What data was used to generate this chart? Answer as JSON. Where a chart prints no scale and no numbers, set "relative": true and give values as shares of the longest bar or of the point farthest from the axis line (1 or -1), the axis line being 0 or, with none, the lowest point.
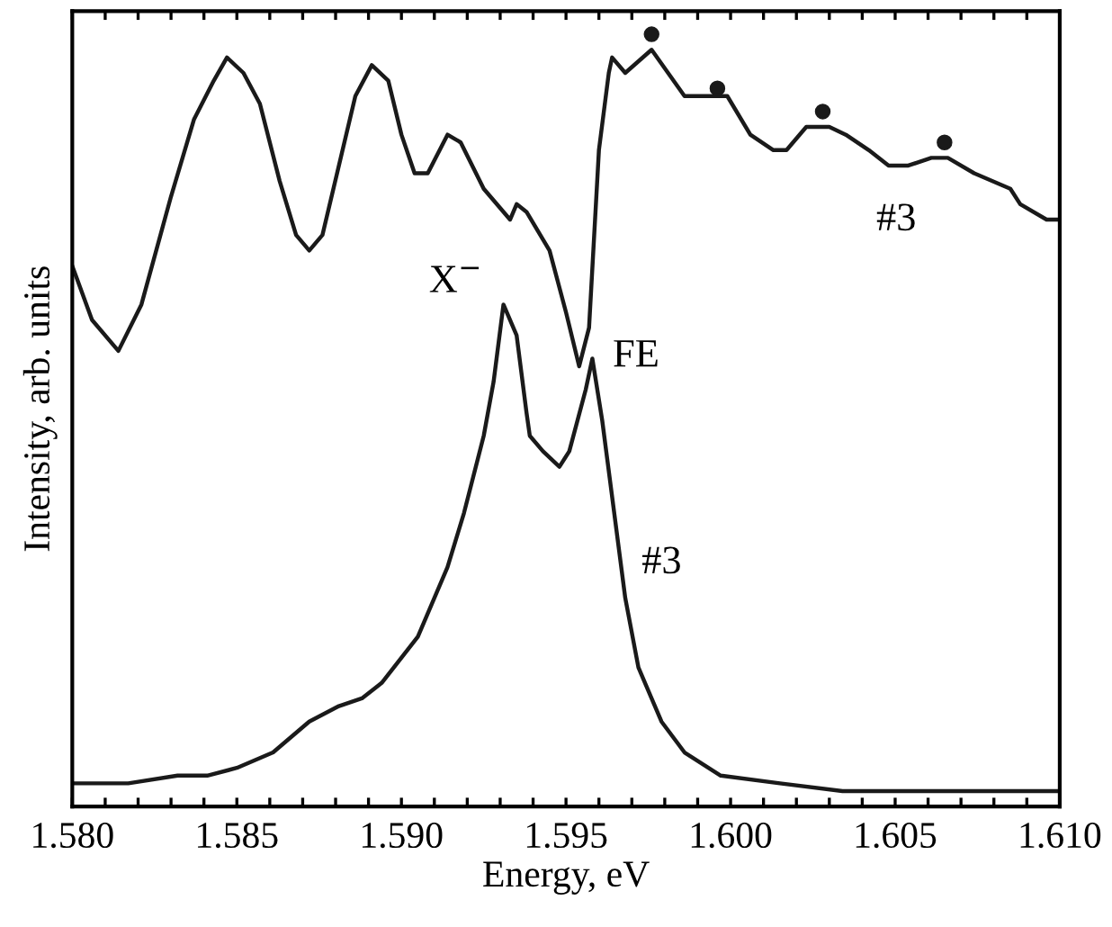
{
  "chart_data": {
    "type": "line",
    "relative": true,
    "xlabel": "Energy, eV",
    "ylabel": "Intensity, arb. units",
    "xlim": [
      1.58,
      1.61
    ],
    "xticks": [
      {
        "value": 1.58,
        "label": "1.580"
      },
      {
        "value": 1.581,
        "label": null
      },
      {
        "value": 1.582,
        "label": null
      },
      {
        "value": 1.583,
        "label": null
      },
      {
        "value": 1.584,
        "label": null
      },
      {
        "value": 1.585,
        "label": "1.585"
      },
      {
        "value": 1.586,
        "label": null
      },
      {
        "value": 1.587,
        "label": null
      },
      {
        "value": 1.588,
        "label": null
      },
      {
        "value": 1.589,
        "label": null
      },
      {
        "value": 1.59,
        "label": "1.590"
      },
      {
        "value": 1.591,
        "label": null
      },
      {
        "value": 1.592,
        "label": null
      },
      {
        "value": 1.593,
        "label": null
      },
      {
        "value": 1.594,
        "label": null
      },
      {
        "value": 1.595,
        "label": "1.595"
      },
      {
        "value": 1.596,
        "label": null
      },
      {
        "value": 1.597,
        "label": null
      },
      {
        "value": 1.598,
        "label": null
      },
      {
        "value": 1.599,
        "label": null
      },
      {
        "value": 1.6,
        "label": "1.600"
      },
      {
        "value": 1.601,
        "label": null
      },
      {
        "value": 1.602,
        "label": null
      },
      {
        "value": 1.603,
        "label": null
      },
      {
        "value": 1.604,
        "label": null
      },
      {
        "value": 1.605,
        "label": "1.605"
      },
      {
        "value": 1.606,
        "label": null
      },
      {
        "value": 1.607,
        "label": null
      },
      {
        "value": 1.608,
        "label": null
      },
      {
        "value": 1.609,
        "label": null
      },
      {
        "value": 1.61,
        "label": "1.610"
      }
    ],
    "series": [
      {
        "color": "#1a1a1a",
        "x": [
          1.58,
          1.5806,
          1.5814,
          1.5821,
          1.583,
          1.5837,
          1.5843,
          1.5847,
          1.5852,
          1.5857,
          1.5863,
          1.5868,
          1.5872,
          1.5876,
          1.5881,
          1.5886,
          1.5891,
          1.5896,
          1.59,
          1.5904,
          1.5908,
          1.5914,
          1.5918,
          1.5925,
          1.5933,
          1.5935,
          1.5938,
          1.5945,
          1.595,
          1.5954,
          1.5957,
          1.596,
          1.5963,
          1.5964,
          1.5968,
          1.5976,
          1.5981,
          1.5986,
          1.5991,
          1.5995,
          1.5999,
          1.6006,
          1.6013,
          1.6017,
          1.6023,
          1.603,
          1.6035,
          1.6042,
          1.6048,
          1.6054,
          1.6061,
          1.6066,
          1.6074,
          1.6085,
          1.6088,
          1.6096,
          1.61
        ],
        "values": [
          0.7,
          0.63,
          0.59,
          0.65,
          0.79,
          0.89,
          0.94,
          0.97,
          0.95,
          0.91,
          0.81,
          0.74,
          0.72,
          0.74,
          0.83,
          0.92,
          0.96,
          0.94,
          0.87,
          0.82,
          0.82,
          0.87,
          0.86,
          0.8,
          0.76,
          0.78,
          0.77,
          0.72,
          0.64,
          0.57,
          0.62,
          0.85,
          0.95,
          0.97,
          0.95,
          0.98,
          0.95,
          0.92,
          0.92,
          0.92,
          0.92,
          0.87,
          0.85,
          0.85,
          0.88,
          0.88,
          0.87,
          0.85,
          0.83,
          0.83,
          0.84,
          0.84,
          0.82,
          0.8,
          0.78,
          0.76,
          0.76
        ]
      },
      {
        "color": "#1a1a1a",
        "x": [
          1.58,
          1.5817,
          1.5832,
          1.5841,
          1.585,
          1.5861,
          1.5872,
          1.5881,
          1.5888,
          1.5894,
          1.5905,
          1.5914,
          1.5919,
          1.5925,
          1.5928,
          1.5931,
          1.5935,
          1.5938,
          1.5939,
          1.5943,
          1.5948,
          1.5951,
          1.5956,
          1.5958,
          1.5961,
          1.5968,
          1.5972,
          1.5979,
          1.5986,
          1.5997,
          1.6015,
          1.6034,
          1.61
        ],
        "values": [
          0.03,
          0.03,
          0.04,
          0.04,
          0.05,
          0.07,
          0.11,
          0.13,
          0.14,
          0.16,
          0.22,
          0.31,
          0.38,
          0.48,
          0.55,
          0.65,
          0.61,
          0.51,
          0.48,
          0.46,
          0.44,
          0.46,
          0.54,
          0.58,
          0.5,
          0.27,
          0.18,
          0.11,
          0.07,
          0.04,
          0.03,
          0.02,
          0.02
        ]
      },
      {
        "type": "scatter",
        "color": "#1a1a1a",
        "marker": "circle",
        "x": [
          1.5976,
          1.5996,
          1.6028,
          1.6065
        ],
        "values": [
          1.0,
          0.93,
          0.9,
          0.86
        ]
      }
    ],
    "annotations": [
      "X$^{−}$",
      "FE",
      "#3",
      "#3"
    ]
  }
}
